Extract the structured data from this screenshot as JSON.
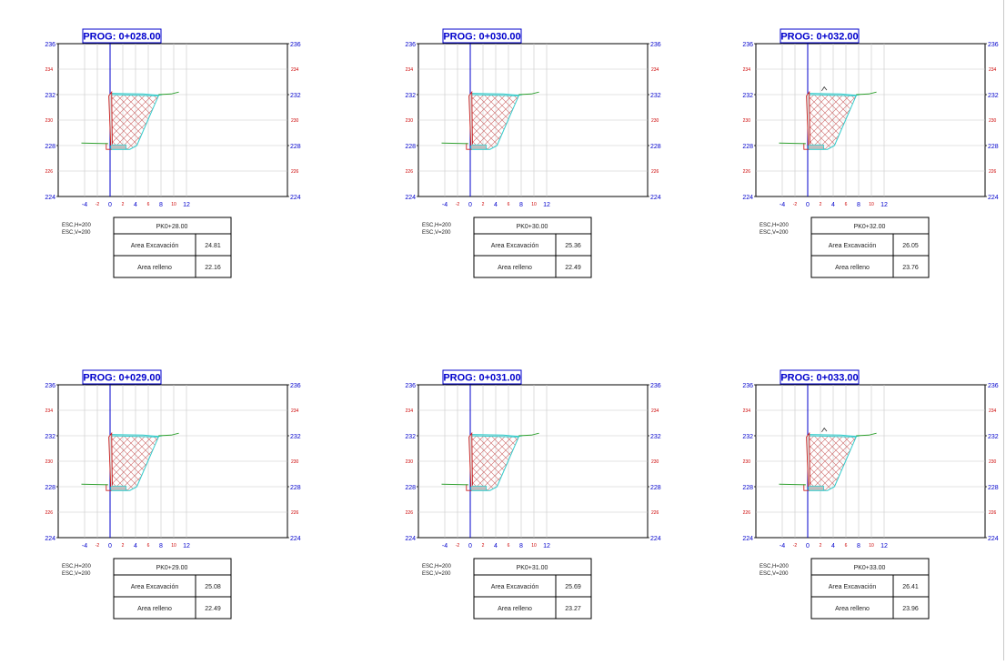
{
  "colors": {
    "axis": "#0000cc",
    "grid": "#c8c8c8",
    "minor_labels": "#cc0000",
    "terrain": "#2ea02e",
    "design": "#33cccc",
    "wall": "#cc2222",
    "hatch": "#cc6666"
  },
  "y_ticks_major": [
    "224",
    "228",
    "232",
    "236"
  ],
  "y_ticks_minor": [
    "226",
    "230",
    "234"
  ],
  "x_ticks_major": [
    "-4",
    "0",
    "4",
    "8",
    "12"
  ],
  "x_ticks_minor": [
    "-2",
    "2",
    "6",
    "10"
  ],
  "table_labels": {
    "excavation": "Area Excavación",
    "fill": "Area relleno"
  },
  "sections": [
    {
      "prog": "PROG: 0+028.00",
      "scale_h": "ESC,H=200",
      "scale_v": "ESC,V=200",
      "pk": "PK0+28.00",
      "excavation": "24.81",
      "fill": "22.16",
      "bump": false
    },
    {
      "prog": "PROG: 0+030.00",
      "scale_h": "ESC,H=200",
      "scale_v": "ESC,V=200",
      "pk": "PK0+30.00",
      "excavation": "25.36",
      "fill": "22.49",
      "bump": false
    },
    {
      "prog": "PROG: 0+032.00",
      "scale_h": "ESC,H=200",
      "scale_v": "ESC,V=200",
      "pk": "PK0+32.00",
      "excavation": "26.05",
      "fill": "23.76",
      "bump": true
    },
    {
      "prog": "PROG: 0+029.00",
      "scale_h": "ESC,H=200",
      "scale_v": "ESC,V=200",
      "pk": "PK0+29.00",
      "excavation": "25.08",
      "fill": "22.49",
      "bump": false
    },
    {
      "prog": "PROG: 0+031.00",
      "scale_h": "ESC,H=200",
      "scale_v": "ESC,V=200",
      "pk": "PK0+31.00",
      "excavation": "25.69",
      "fill": "23.27",
      "bump": false
    },
    {
      "prog": "PROG: 0+033.00",
      "scale_h": "ESC,H=200",
      "scale_v": "ESC,V=200",
      "pk": "PK0+33.00",
      "excavation": "26.41",
      "fill": "23.96",
      "bump": true
    }
  ]
}
